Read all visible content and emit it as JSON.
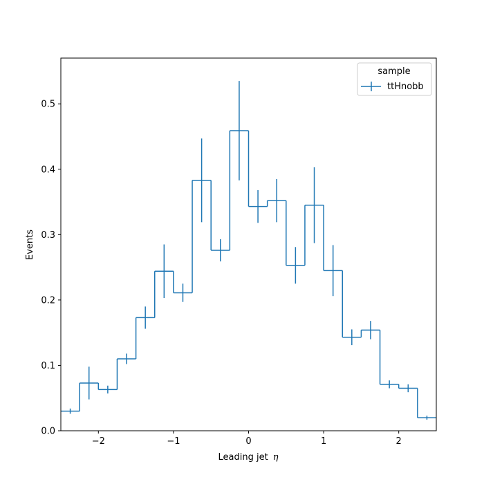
{
  "chart_data": {
    "type": "histogram",
    "title": "",
    "xlabel": "Leading jet",
    "xlabel_symbol": "η",
    "ylabel": "Events",
    "xlim": [
      -2.5,
      2.5
    ],
    "ylim": [
      0.0,
      0.57
    ],
    "xticks": [
      -2,
      -1,
      0,
      1,
      2
    ],
    "xtick_labels": [
      "−2",
      "−1",
      "0",
      "1",
      "2"
    ],
    "yticks": [
      0.0,
      0.1,
      0.2,
      0.3,
      0.4,
      0.5
    ],
    "ytick_labels": [
      "0.0",
      "0.1",
      "0.2",
      "0.3",
      "0.4",
      "0.5"
    ],
    "grid": false,
    "legend": {
      "title": "sample",
      "position": "top-right"
    },
    "bin_edges": [
      -2.5,
      -2.25,
      -2.0,
      -1.75,
      -1.5,
      -1.25,
      -1.0,
      -0.75,
      -0.5,
      -0.25,
      0.0,
      0.25,
      0.5,
      0.75,
      1.0,
      1.25,
      1.5,
      1.75,
      2.0,
      2.25,
      2.5
    ],
    "series": [
      {
        "name": "ttHnobb",
        "color": "#1f77b4",
        "values": [
          0.03,
          0.073,
          0.063,
          0.11,
          0.173,
          0.244,
          0.211,
          0.383,
          0.276,
          0.459,
          0.343,
          0.352,
          0.253,
          0.345,
          0.245,
          0.143,
          0.154,
          0.071,
          0.065,
          0.02
        ],
        "errors": [
          0.004,
          0.025,
          0.006,
          0.008,
          0.017,
          0.041,
          0.014,
          0.064,
          0.017,
          0.076,
          0.025,
          0.033,
          0.028,
          0.058,
          0.039,
          0.012,
          0.014,
          0.006,
          0.006,
          0.003
        ]
      }
    ]
  }
}
